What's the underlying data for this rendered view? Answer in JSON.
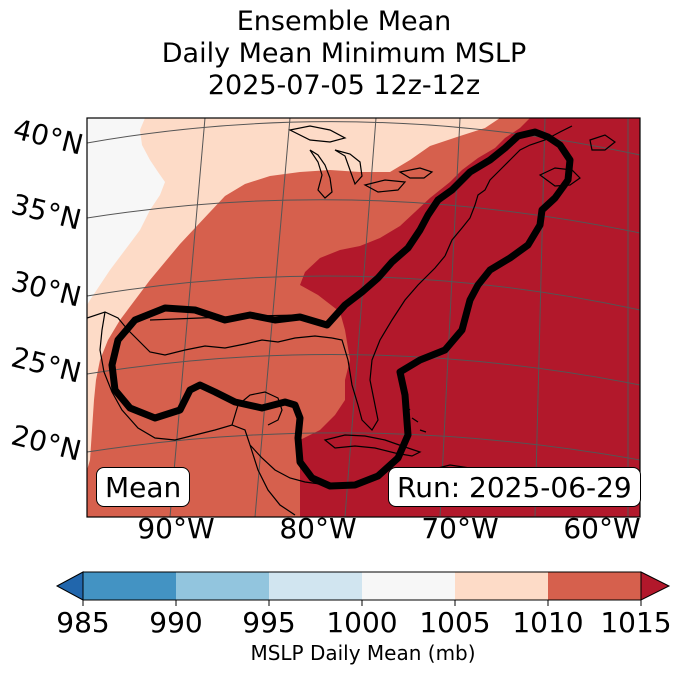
{
  "title": {
    "line1": "Ensemble Mean",
    "line2": "Daily Mean Minimum MSLP",
    "line3": "2025-07-05 12z-12z"
  },
  "map": {
    "lat_labels": [
      "40°N",
      "35°N",
      "30°N",
      "25°N",
      "20°N"
    ],
    "lon_labels": [
      "90°W",
      "80°W",
      "70°W",
      "60°W"
    ],
    "mean_label": "Mean",
    "run_label": "Run: 2025-06-29",
    "fill_colors": {
      "1000-1005": "#f7f7f7",
      "1005-1010": "#fddbc7",
      "1010-1015": "#d6604d",
      "above-1015": "#b2182b"
    },
    "contour_color": "#000000",
    "coastline_color": "#000000",
    "gridline_color": "#555555"
  },
  "colorbar": {
    "ticks": [
      "985",
      "990",
      "995",
      "1000",
      "1005",
      "1010",
      "1015"
    ],
    "label": "MSLP Daily Mean (mb)",
    "colors": [
      "#2166ac",
      "#4393c3",
      "#92c5de",
      "#d1e5f0",
      "#f7f7f7",
      "#fddbc7",
      "#d6604d",
      "#b2182b"
    ]
  }
}
